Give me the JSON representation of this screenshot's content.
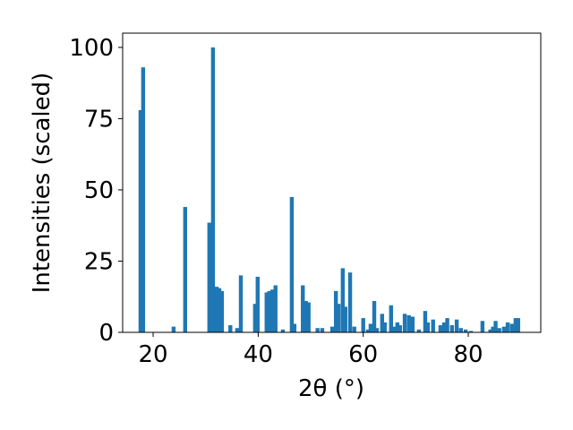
{
  "chart_data": {
    "type": "bar",
    "xlabel": "2θ (°)",
    "ylabel": "Intensities (scaled)",
    "color": "#1f77b4",
    "xlim": [
      14.2,
      93.8
    ],
    "xticks": [
      20,
      40,
      60,
      80
    ],
    "ylim": [
      0,
      105
    ],
    "yticks": [
      0,
      25,
      50,
      75,
      100
    ],
    "x": [
      17.6,
      18.1,
      23.9,
      26.1,
      30.7,
      31.4,
      32.1,
      32.6,
      33.1,
      34.7,
      36.0,
      36.7,
      39.4,
      39.9,
      41.6,
      42.1,
      42.7,
      43.3,
      44.7,
      46.4,
      46.9,
      48.5,
      49.1,
      49.6,
      51.3,
      52.2,
      54.1,
      54.8,
      55.3,
      56.1,
      56.6,
      57.5,
      58.3,
      60.0,
      60.9,
      61.4,
      62.1,
      62.6,
      63.6,
      64.1,
      65.3,
      65.8,
      66.5,
      67.0,
      67.9,
      68.7,
      69.4,
      70.6,
      71.8,
      72.3,
      73.3,
      74.7,
      75.4,
      76.0,
      76.9,
      77.8,
      78.6,
      79.5,
      80.5,
      82.7,
      84.2,
      84.7,
      85.2,
      85.9,
      86.8,
      87.5,
      88.3,
      89.0,
      89.5
    ],
    "values": [
      78,
      93,
      2,
      44,
      38.5,
      100,
      16,
      15.5,
      14.5,
      2.5,
      1.5,
      20,
      10,
      19.5,
      14,
      14.5,
      15,
      16.5,
      1,
      47.5,
      3,
      16.5,
      11,
      10.5,
      1.5,
      1.5,
      2,
      14.5,
      10,
      22.5,
      9,
      21,
      2,
      5,
      1,
      3,
      11,
      1.5,
      6.5,
      3.5,
      9.5,
      2,
      3.5,
      2.5,
      6.5,
      6,
      5.5,
      1,
      7.5,
      3.5,
      4.5,
      2.5,
      3.5,
      5,
      2.5,
      4.5,
      1.5,
      1,
      0.5,
      4,
      1,
      2,
      4,
      1.5,
      2,
      3.5,
      3,
      5,
      5
    ]
  }
}
